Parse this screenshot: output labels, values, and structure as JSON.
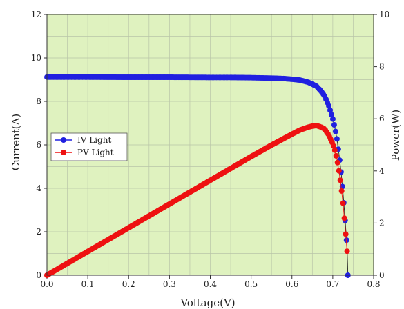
{
  "chart_data": {
    "type": "scatter",
    "xlabel": "Voltage(V)",
    "ylabel": "Current(A)",
    "y2label": "Power(W)",
    "xlim": [
      0.0,
      0.8
    ],
    "ylim": [
      0,
      12
    ],
    "y2lim": [
      0,
      10
    ],
    "grid": true,
    "legend_position": "left",
    "xticks": [
      "0.0",
      "0.1",
      "0.2",
      "0.3",
      "0.4",
      "0.5",
      "0.6",
      "0.7",
      "0.8"
    ],
    "yticks": [
      "0",
      "2",
      "4",
      "6",
      "8",
      "10",
      "12"
    ],
    "y2ticks": [
      "0",
      "2",
      "4",
      "6",
      "8",
      "10"
    ],
    "colors": {
      "iv": "#2020e0",
      "pv": "#ee1111",
      "background": "#dff2bf",
      "grid": "#b9c4a8"
    },
    "series": [
      {
        "name": "IV Light",
        "axis": "left",
        "x": [
          0.0,
          0.1,
          0.2,
          0.3,
          0.4,
          0.45,
          0.5,
          0.55,
          0.58,
          0.6,
          0.62,
          0.64,
          0.66,
          0.67,
          0.68,
          0.69,
          0.7,
          0.705,
          0.71,
          0.715,
          0.72,
          0.725,
          0.73,
          0.735,
          0.737
        ],
        "y": [
          9.12,
          9.12,
          9.11,
          9.11,
          9.1,
          9.1,
          9.09,
          9.07,
          9.05,
          9.02,
          8.98,
          8.88,
          8.7,
          8.5,
          8.25,
          7.8,
          7.2,
          6.8,
          6.3,
          5.6,
          4.8,
          3.8,
          2.6,
          1.25,
          0.0
        ]
      },
      {
        "name": "PV Light",
        "axis": "right",
        "x": [
          0.0,
          0.1,
          0.2,
          0.3,
          0.4,
          0.5,
          0.55,
          0.6,
          0.62,
          0.64,
          0.65,
          0.66,
          0.67,
          0.68,
          0.69,
          0.7,
          0.705,
          0.71,
          0.715,
          0.72,
          0.725,
          0.73,
          0.735
        ],
        "y": [
          0.0,
          0.91,
          1.82,
          2.73,
          3.64,
          4.55,
          4.99,
          5.41,
          5.57,
          5.68,
          5.72,
          5.74,
          5.69,
          5.61,
          5.38,
          5.04,
          4.79,
          4.47,
          4.0,
          3.46,
          2.76,
          1.9,
          0.92
        ]
      }
    ]
  }
}
